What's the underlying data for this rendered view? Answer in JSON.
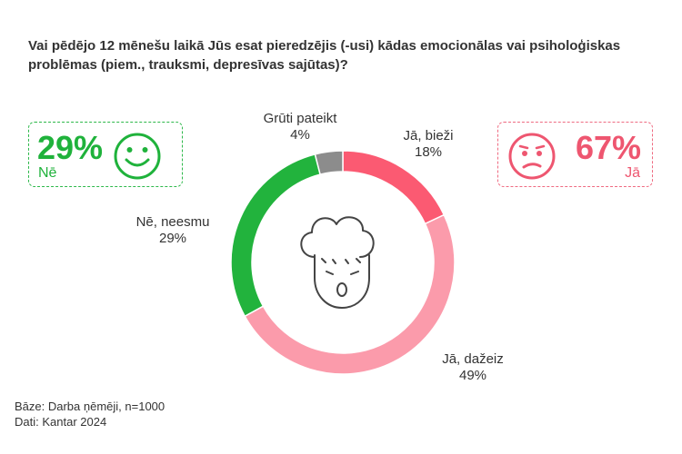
{
  "title": "Vai pēdējo 12 mēnešu laikā Jūs esat pieredzējis (-usi) kādas emocionālas vai psiholoģiskas problēmas (piem., trauksmi, depresīvas sajūtas)?",
  "summary": {
    "no": {
      "value": "29%",
      "label": "Nē",
      "color": "#1fb23b",
      "icon": "smiley-face-icon"
    },
    "yes": {
      "value": "67%",
      "label": "Jā",
      "color": "#ee5670",
      "icon": "sad-face-icon"
    }
  },
  "chart_data": {
    "type": "pie",
    "donut": true,
    "center_icon": "stressed-person-icon",
    "slices": [
      {
        "name": "Jā, bieži",
        "value": 18,
        "label": "18%",
        "color": "#fb5a72"
      },
      {
        "name": "Jā, dažeiz",
        "value": 49,
        "label": "49%",
        "color": "#fb9bab"
      },
      {
        "name": "Nē, neesmu",
        "value": 29,
        "label": "29%",
        "color": "#22b33d"
      },
      {
        "name": "Grūti pateikt",
        "value": 4,
        "label": "4%",
        "color": "#8c8c8c"
      }
    ]
  },
  "footnotes": {
    "base": "Bāze: Darba ņēmēji, n=1000",
    "source": "Dati: Kantar 2024"
  }
}
